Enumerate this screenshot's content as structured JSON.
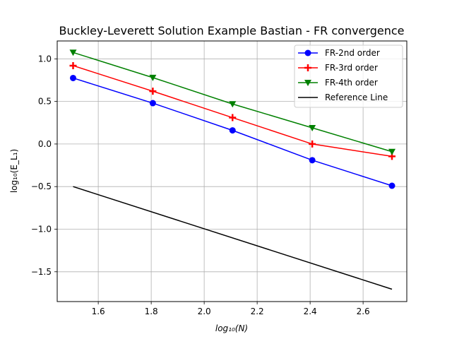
{
  "chart_data": {
    "type": "line",
    "title": "Buckley-Leverett Solution Example Bastian - FR convergence",
    "xlabel": "log₁₀(N)",
    "ylabel": "log₁₀(E_L₁)",
    "xlim": [
      1.445,
      2.765
    ],
    "ylim": [
      -1.85,
      1.21
    ],
    "grid": true,
    "legend_position": "top-right",
    "x_ticks": [
      "1.6",
      "1.8",
      "2.0",
      "2.2",
      "2.4",
      "2.6"
    ],
    "x_tick_values": [
      1.6,
      1.8,
      2.0,
      2.2,
      2.4,
      2.6
    ],
    "y_ticks": [
      "1.0",
      "0.5",
      "0.0",
      "−0.5",
      "−1.0",
      "−1.5"
    ],
    "y_tick_values": [
      1.0,
      0.5,
      0.0,
      -0.5,
      -1.0,
      -1.5
    ],
    "series": [
      {
        "name": "FR-2nd order",
        "color": "#0000ff",
        "marker": "circle",
        "x": [
          1.505,
          1.806,
          2.107,
          2.408,
          2.709
        ],
        "y": [
          0.775,
          0.48,
          0.16,
          -0.19,
          -0.49
        ]
      },
      {
        "name": "FR-3rd order",
        "color": "#ff0000",
        "marker": "plus",
        "x": [
          1.505,
          1.806,
          2.107,
          2.408,
          2.709
        ],
        "y": [
          0.92,
          0.62,
          0.31,
          0.0,
          -0.145
        ]
      },
      {
        "name": "FR-4th order",
        "color": "#008000",
        "marker": "triangle-down",
        "x": [
          1.505,
          1.806,
          2.107,
          2.408,
          2.709
        ],
        "y": [
          1.075,
          0.78,
          0.47,
          0.19,
          -0.09
        ]
      },
      {
        "name": "Reference Line",
        "color": "#000000",
        "marker": "none",
        "x": [
          1.505,
          2.709
        ],
        "y": [
          -0.5,
          -1.705
        ]
      }
    ]
  }
}
